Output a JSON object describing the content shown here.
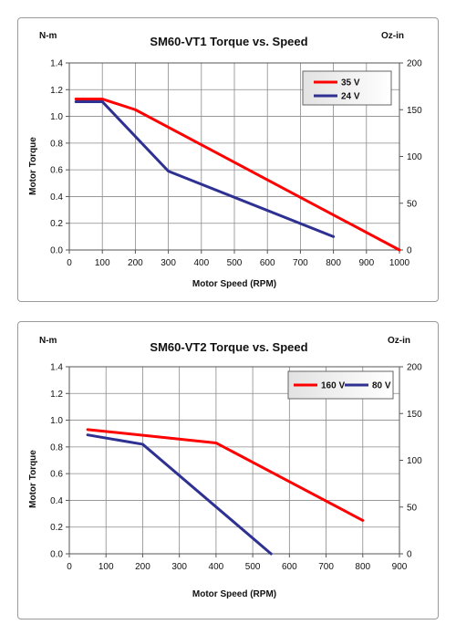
{
  "chart_data": [
    {
      "type": "line",
      "title": "SM60-VT1 Torque vs. Speed",
      "left_unit": "N-m",
      "right_unit": "Oz-in",
      "xlabel": "Motor Speed (RPM)",
      "ylabel": "Motor Torque",
      "xlim": [
        0,
        1000
      ],
      "ylim": [
        0,
        1.4
      ],
      "x_ticks": [
        "0",
        "100",
        "200",
        "300",
        "400",
        "500",
        "600",
        "700",
        "800",
        "900",
        "1000"
      ],
      "y_ticks": [
        "0.0",
        "0.2",
        "0.4",
        "0.6",
        "0.8",
        "1.0",
        "1.2",
        "1.4"
      ],
      "y2lim": [
        0,
        200
      ],
      "y2_ticks": [
        "0",
        "50",
        "100",
        "150",
        "200"
      ],
      "grid": true,
      "legend_position": "top-right",
      "legend_layout": "vertical",
      "series": [
        {
          "name": "35 V",
          "color": "#ff0000",
          "x": [
            20,
            100,
            200,
            1000
          ],
          "y": [
            1.13,
            1.13,
            1.05,
            0.0
          ]
        },
        {
          "name": "24 V",
          "color": "#2e3192",
          "x": [
            20,
            100,
            300,
            800
          ],
          "y": [
            1.11,
            1.11,
            0.59,
            0.1
          ]
        }
      ]
    },
    {
      "type": "line",
      "title": "SM60-VT2 Torque vs. Speed",
      "left_unit": "N-m",
      "right_unit": "Oz-in",
      "xlabel": "Motor Speed (RPM)",
      "ylabel": "Motor Torque",
      "xlim": [
        0,
        900
      ],
      "ylim": [
        0,
        1.4
      ],
      "x_ticks": [
        "0",
        "100",
        "200",
        "300",
        "400",
        "500",
        "600",
        "700",
        "800",
        "900"
      ],
      "y_ticks": [
        "0.0",
        "0.2",
        "0.4",
        "0.6",
        "0.8",
        "1.0",
        "1.2",
        "1.4"
      ],
      "y2lim": [
        0,
        200
      ],
      "y2_ticks": [
        "0",
        "50",
        "100",
        "150",
        "200"
      ],
      "grid": true,
      "legend_position": "top-right",
      "legend_layout": "horizontal",
      "series": [
        {
          "name": "160 V",
          "color": "#ff0000",
          "x": [
            50,
            400,
            800
          ],
          "y": [
            0.93,
            0.83,
            0.25
          ]
        },
        {
          "name": "80 V",
          "color": "#2e3192",
          "x": [
            50,
            200,
            550
          ],
          "y": [
            0.89,
            0.82,
            0.0
          ]
        }
      ]
    }
  ]
}
